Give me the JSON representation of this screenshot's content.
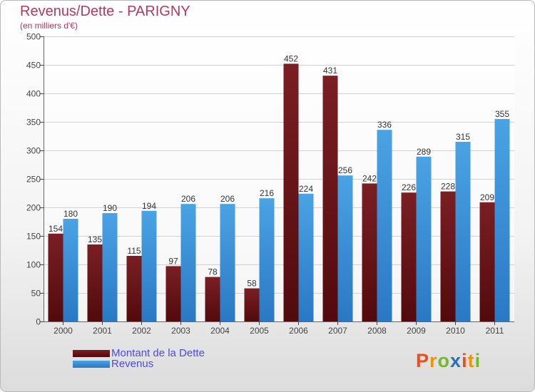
{
  "header": {
    "title": "Revenus/Dette - PARIGNY",
    "subtitle": "(en milliers d'€)"
  },
  "legend": {
    "debt_label": "Montant de la Dette",
    "revenue_label": "Revenus"
  },
  "logo": {
    "letters": [
      "P",
      "r",
      "o",
      "x",
      "i",
      "t",
      "i"
    ]
  },
  "colors": {
    "debt": "#7a1f24",
    "debt_dark": "#520a0c",
    "revenue": "#4aa3e3",
    "revenue_dark": "#2a78c4",
    "title": "#b3395a",
    "legend_text": "#4a4af0",
    "logo": [
      "#e94e1b",
      "#f39200",
      "#76b82a",
      "#2a6fbb",
      "#e94e1b",
      "#f39200",
      "#76b82a"
    ]
  },
  "chart_data": {
    "type": "bar",
    "title": "Revenus/Dette - PARIGNY",
    "ylabel": "(en milliers d'€)",
    "xlabel": "",
    "categories": [
      "2000",
      "2001",
      "2002",
      "2003",
      "2004",
      "2005",
      "2006",
      "2007",
      "2008",
      "2009",
      "2010",
      "2011"
    ],
    "series": [
      {
        "name": "Montant de la Dette",
        "values": [
          154,
          135,
          115,
          97,
          78,
          58,
          452,
          431,
          242,
          226,
          228,
          209
        ]
      },
      {
        "name": "Revenus",
        "values": [
          180,
          190,
          194,
          206,
          206,
          216,
          224,
          256,
          336,
          289,
          315,
          355
        ]
      }
    ],
    "ylim": [
      0,
      500
    ],
    "yticks": [
      "0",
      "50",
      "100",
      "150",
      "200",
      "250",
      "300",
      "350",
      "400",
      "450",
      "500"
    ],
    "grid": true,
    "legend_position": "bottom-left"
  }
}
